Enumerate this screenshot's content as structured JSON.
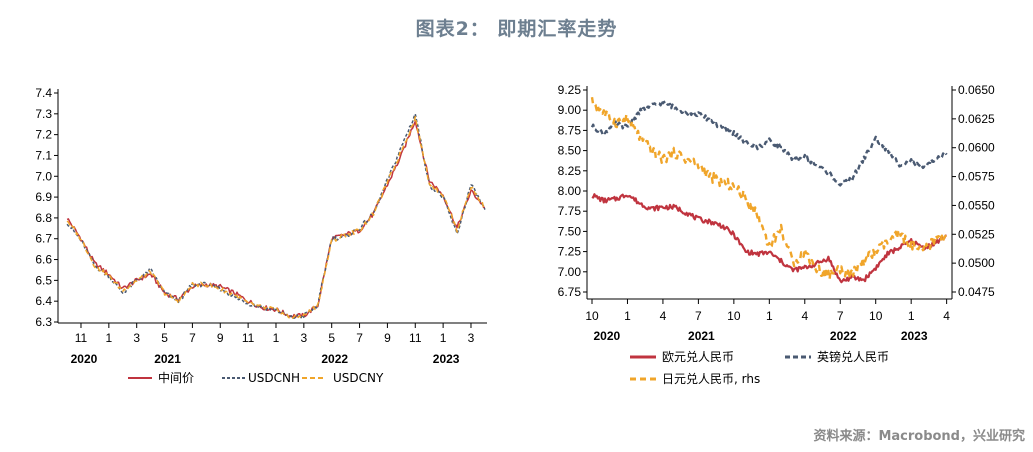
{
  "figure": {
    "title": "图表2： 即期汇率走势",
    "source": "资料来源：Macrobond，兴业研究"
  },
  "chart_data": [
    {
      "type": "line",
      "ylim": [
        6.3,
        7.4
      ],
      "yticks": [
        "6.3",
        "6.4",
        "6.5",
        "6.6",
        "6.7",
        "6.8",
        "6.9",
        "7.0",
        "7.1",
        "7.2",
        "7.3",
        "7.4"
      ],
      "xtick_labels": [
        "11",
        "1",
        "3",
        "5",
        "7",
        "9",
        "11",
        "1",
        "3",
        "5",
        "7",
        "9",
        "11",
        "1",
        "3"
      ],
      "year_labels": [
        "2020",
        "2021",
        "2022",
        "2023"
      ],
      "x": [
        "2020-10",
        "2020-11",
        "2020-12",
        "2021-01",
        "2021-02",
        "2021-03",
        "2021-04",
        "2021-05",
        "2021-06",
        "2021-07",
        "2021-08",
        "2021-09",
        "2021-10",
        "2021-11",
        "2021-12",
        "2022-01",
        "2022-02",
        "2022-03",
        "2022-04",
        "2022-05",
        "2022-06",
        "2022-07",
        "2022-08",
        "2022-09",
        "2022-10",
        "2022-11",
        "2022-12",
        "2023-01",
        "2023-02",
        "2023-03",
        "2023-04"
      ],
      "series": [
        {
          "name": "中间价",
          "color": "#c0343f",
          "dash": "solid",
          "values": [
            6.8,
            6.7,
            6.58,
            6.53,
            6.46,
            6.5,
            6.53,
            6.44,
            6.41,
            6.47,
            6.48,
            6.47,
            6.44,
            6.4,
            6.37,
            6.36,
            6.33,
            6.33,
            6.38,
            6.7,
            6.72,
            6.74,
            6.82,
            6.96,
            7.1,
            7.27,
            6.98,
            6.91,
            6.75,
            6.93,
            6.85
          ]
        },
        {
          "name": "USDCNH",
          "color": "#4a5a72",
          "dash": "3,2",
          "values": [
            6.78,
            6.69,
            6.57,
            6.52,
            6.44,
            6.5,
            6.55,
            6.44,
            6.4,
            6.48,
            6.48,
            6.46,
            6.42,
            6.39,
            6.37,
            6.36,
            6.32,
            6.33,
            6.38,
            6.7,
            6.71,
            6.75,
            6.82,
            6.98,
            7.14,
            7.3,
            6.96,
            6.9,
            6.72,
            6.96,
            6.84
          ]
        },
        {
          "name": "USDCNY",
          "color": "#f0a52a",
          "dash": "5,3",
          "values": [
            6.79,
            6.7,
            6.57,
            6.52,
            6.45,
            6.5,
            6.54,
            6.44,
            6.4,
            6.48,
            6.48,
            6.46,
            6.43,
            6.39,
            6.37,
            6.36,
            6.32,
            6.33,
            6.38,
            6.69,
            6.72,
            6.74,
            6.82,
            6.97,
            7.12,
            7.28,
            6.97,
            6.91,
            6.74,
            6.95,
            6.85
          ]
        }
      ]
    },
    {
      "type": "line",
      "ylim": [
        6.75,
        9.25
      ],
      "yticks": [
        "6.75",
        "7.00",
        "7.25",
        "7.50",
        "7.75",
        "8.00",
        "8.25",
        "8.50",
        "8.75",
        "9.00",
        "9.25"
      ],
      "y2lim": [
        0.0475,
        0.065
      ],
      "y2ticks": [
        "0.0475",
        "0.0500",
        "0.0525",
        "0.0550",
        "0.0575",
        "0.0600",
        "0.0625",
        "0.0650"
      ],
      "xtick_labels": [
        "10",
        "1",
        "4",
        "7",
        "10",
        "1",
        "4",
        "7",
        "10",
        "1",
        "4"
      ],
      "year_labels": [
        "2020",
        "2021",
        "2022",
        "2023"
      ],
      "x": [
        "2020-10",
        "2020-11",
        "2020-12",
        "2021-01",
        "2021-02",
        "2021-03",
        "2021-04",
        "2021-05",
        "2021-06",
        "2021-07",
        "2021-08",
        "2021-09",
        "2021-10",
        "2021-11",
        "2021-12",
        "2022-01",
        "2022-02",
        "2022-03",
        "2022-04",
        "2022-05",
        "2022-06",
        "2022-07",
        "2022-08",
        "2022-09",
        "2022-10",
        "2022-11",
        "2022-12",
        "2023-01",
        "2023-02",
        "2023-03",
        "2023-04"
      ],
      "series": [
        {
          "name": "欧元兑人民币",
          "color": "#c0343f",
          "dash": "solid",
          "axis": "left",
          "values": [
            7.95,
            7.88,
            7.9,
            7.96,
            7.85,
            7.78,
            7.8,
            7.8,
            7.73,
            7.65,
            7.62,
            7.57,
            7.46,
            7.25,
            7.22,
            7.24,
            7.13,
            7.02,
            7.05,
            7.1,
            7.17,
            6.88,
            6.93,
            6.9,
            7.05,
            7.22,
            7.3,
            7.38,
            7.3,
            7.35,
            7.45
          ]
        },
        {
          "name": "英镑兑人民币",
          "color": "#4a5a72",
          "dash": "5,3",
          "axis": "left",
          "values": [
            8.8,
            8.72,
            8.83,
            8.79,
            8.98,
            9.05,
            9.1,
            9.03,
            8.97,
            8.95,
            8.88,
            8.77,
            8.72,
            8.6,
            8.54,
            8.62,
            8.55,
            8.38,
            8.42,
            8.32,
            8.23,
            8.08,
            8.15,
            8.4,
            8.65,
            8.5,
            8.33,
            8.37,
            8.27,
            8.4,
            8.45
          ]
        },
        {
          "name": "日元兑人民币, rhs",
          "color": "#f0a52a",
          "dash": "6,4",
          "axis": "right",
          "values": [
            0.064,
            0.063,
            0.0622,
            0.0625,
            0.061,
            0.0598,
            0.059,
            0.0596,
            0.059,
            0.0585,
            0.0575,
            0.057,
            0.0567,
            0.0556,
            0.0542,
            0.0515,
            0.053,
            0.05,
            0.051,
            0.0495,
            0.049,
            0.0495,
            0.049,
            0.0502,
            0.051,
            0.0518,
            0.0525,
            0.0515,
            0.051,
            0.052,
            0.0525
          ]
        }
      ]
    }
  ]
}
